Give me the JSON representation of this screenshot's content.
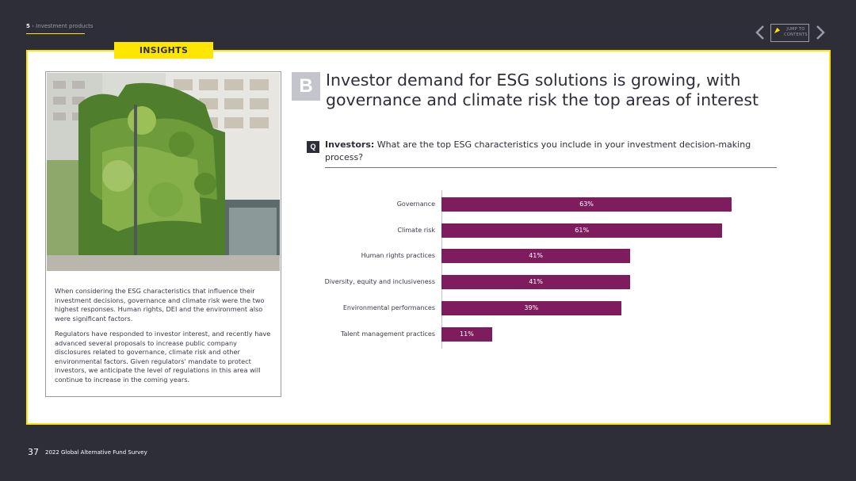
{
  "header": {
    "section_number": "5",
    "section_name": " › Investment products",
    "jump_label_line1": "JUMP TO",
    "jump_label_line2": "CONTENTS"
  },
  "tab": {
    "label": "INSIGHTS"
  },
  "side": {
    "paragraph1": "When considering the ESG characteristics that influence their investment decisions, governance and climate risk were the two highest responses. Human rights, DEI and the environment also were significant factors.",
    "paragraph2": "Regulators have responded to investor interest, and recently have advanced several proposals to increase public company disclosures related to governance, climate risk and other environmental factors. Given regulators' mandate to protect investors, we anticipate the level of regulations in this area will continue to increase in the coming years."
  },
  "main": {
    "badge": "B",
    "headline": "Investor demand for ESG solutions is growing, with governance and climate risk the top areas of interest",
    "q_badge": "Q",
    "question_lead": "Investors:",
    "question_text": " What are the top ESG characteristics you include in your investment decision-making process?"
  },
  "chart_data": {
    "type": "bar",
    "orientation": "horizontal",
    "categories": [
      "Governance",
      "Climate risk",
      "Human rights practices",
      "Diversity, equity and inclusiveness",
      "Environmental performances",
      "Talent management practices"
    ],
    "values": [
      63,
      61,
      41,
      41,
      39,
      11
    ],
    "value_labels": [
      "63%",
      "61%",
      "41%",
      "41%",
      "39%",
      "11%"
    ],
    "unit": "%",
    "bar_color": "#7f1c5e",
    "xlim": [
      0,
      63
    ]
  },
  "footer": {
    "page_number": "37",
    "doc_title": "2022 Global Alternative Fund Survey"
  },
  "colors": {
    "accent": "#ffe600",
    "background": "#2e2e38",
    "bar": "#7f1c5e"
  }
}
